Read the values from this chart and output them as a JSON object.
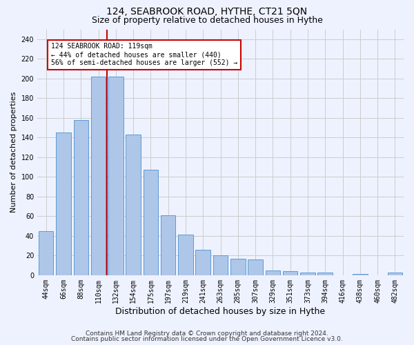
{
  "title": "124, SEABROOK ROAD, HYTHE, CT21 5QN",
  "subtitle": "Size of property relative to detached houses in Hythe",
  "xlabel": "Distribution of detached houses by size in Hythe",
  "ylabel": "Number of detached properties",
  "footer_line1": "Contains HM Land Registry data © Crown copyright and database right 2024.",
  "footer_line2": "Contains public sector information licensed under the Open Government Licence v3.0.",
  "categories": [
    "44sqm",
    "66sqm",
    "88sqm",
    "110sqm",
    "132sqm",
    "154sqm",
    "175sqm",
    "197sqm",
    "219sqm",
    "241sqm",
    "263sqm",
    "285sqm",
    "307sqm",
    "329sqm",
    "351sqm",
    "373sqm",
    "394sqm",
    "416sqm",
    "438sqm",
    "460sqm",
    "482sqm"
  ],
  "values": [
    45,
    145,
    158,
    202,
    202,
    143,
    107,
    61,
    41,
    26,
    20,
    17,
    16,
    5,
    4,
    3,
    3,
    0,
    1,
    0,
    3
  ],
  "bar_color": "#aec6e8",
  "bar_edge_color": "#5b9bd5",
  "highlight_index": 3,
  "highlight_line_color": "#cc0000",
  "annotation_text": "124 SEABROOK ROAD: 119sqm\n← 44% of detached houses are smaller (440)\n56% of semi-detached houses are larger (552) →",
  "annotation_box_color": "#ffffff",
  "annotation_box_edge_color": "#cc0000",
  "ylim": [
    0,
    250
  ],
  "yticks": [
    0,
    20,
    40,
    60,
    80,
    100,
    120,
    140,
    160,
    180,
    200,
    220,
    240
  ],
  "background_color": "#eef2ff",
  "grid_color": "#cccccc",
  "title_fontsize": 10,
  "subtitle_fontsize": 9,
  "axis_label_fontsize": 8,
  "tick_fontsize": 7,
  "footer_fontsize": 6.5
}
